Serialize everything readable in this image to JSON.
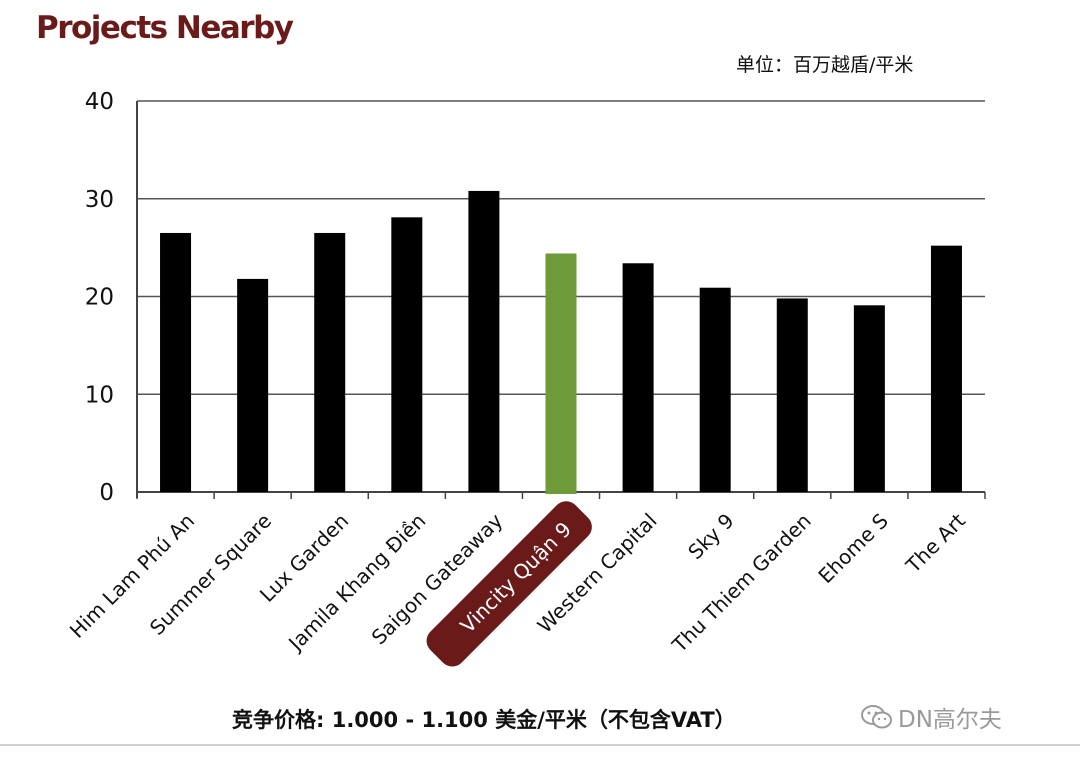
{
  "header": {
    "title": "Projects Nearby",
    "unit": "单位：百万越盾/平米"
  },
  "footer": {
    "note": "竞争价格:  1.000 - 1.100 美金/平米（不包含VAT）",
    "watermark": "DN高尔夫",
    "watermark_icon": "wechat-icon"
  },
  "colors": {
    "bar": "#000000",
    "highlight_bar": "#6f9a3a",
    "highlight_label_bg": "#6b1a1a",
    "highlight_label_text": "#ffffff",
    "title": "#6b1a1a"
  },
  "chart_data": {
    "type": "bar",
    "title": "",
    "xlabel": "",
    "ylabel": "",
    "ylim": [
      0,
      40
    ],
    "yticks": [
      0,
      10,
      20,
      30,
      40
    ],
    "grid": true,
    "categories": [
      "Him Lam Phú An",
      "Summer Square",
      "Lux Garden",
      "Jamila Khang Điền",
      "Saigon Gateaway",
      "Vincity Quận 9",
      "Western Capital",
      "Sky 9",
      "Thu Thiem Garden",
      "Ehome S",
      "The Art"
    ],
    "values": [
      26.5,
      21.8,
      26.5,
      28.1,
      30.8,
      24.4,
      23.4,
      20.9,
      19.8,
      19.1,
      25.2
    ],
    "highlight_index": 5
  }
}
